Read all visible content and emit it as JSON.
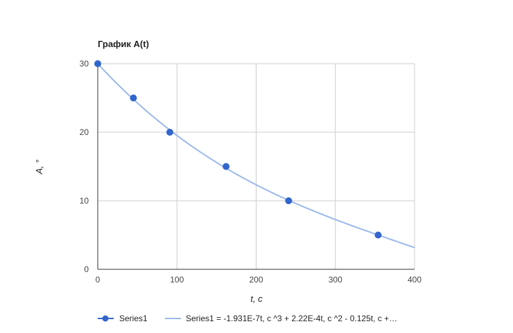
{
  "chart_data": {
    "type": "scatter",
    "title": "График A(t)",
    "xlabel": "t, c",
    "ylabel": "A, °",
    "xlim": [
      0,
      400
    ],
    "ylim": [
      0,
      30
    ],
    "x_ticks": [
      "0",
      "100",
      "200",
      "300",
      "400"
    ],
    "y_ticks": [
      "0",
      "10",
      "20",
      "30"
    ],
    "grid": true,
    "legend_position": "bottom",
    "series": [
      {
        "name": "Series1",
        "color": "#3366cc",
        "points": [
          {
            "x": 0,
            "y": 30
          },
          {
            "x": 45,
            "y": 25
          },
          {
            "x": 91,
            "y": 20
          },
          {
            "x": 162,
            "y": 15
          },
          {
            "x": 241,
            "y": 10
          },
          {
            "x": 354,
            "y": 5
          }
        ]
      }
    ],
    "trendline": {
      "name": "Series1 = -1.931E-7t, c ^3 + 2.22E-4t, c ^2 - 0.125t, c  +…",
      "color": "#9ab8ea",
      "type": "polynomial",
      "coefficients": {
        "a3": -1.931e-07,
        "a2": 0.000222,
        "a1": -0.125,
        "a0": 30
      }
    }
  }
}
